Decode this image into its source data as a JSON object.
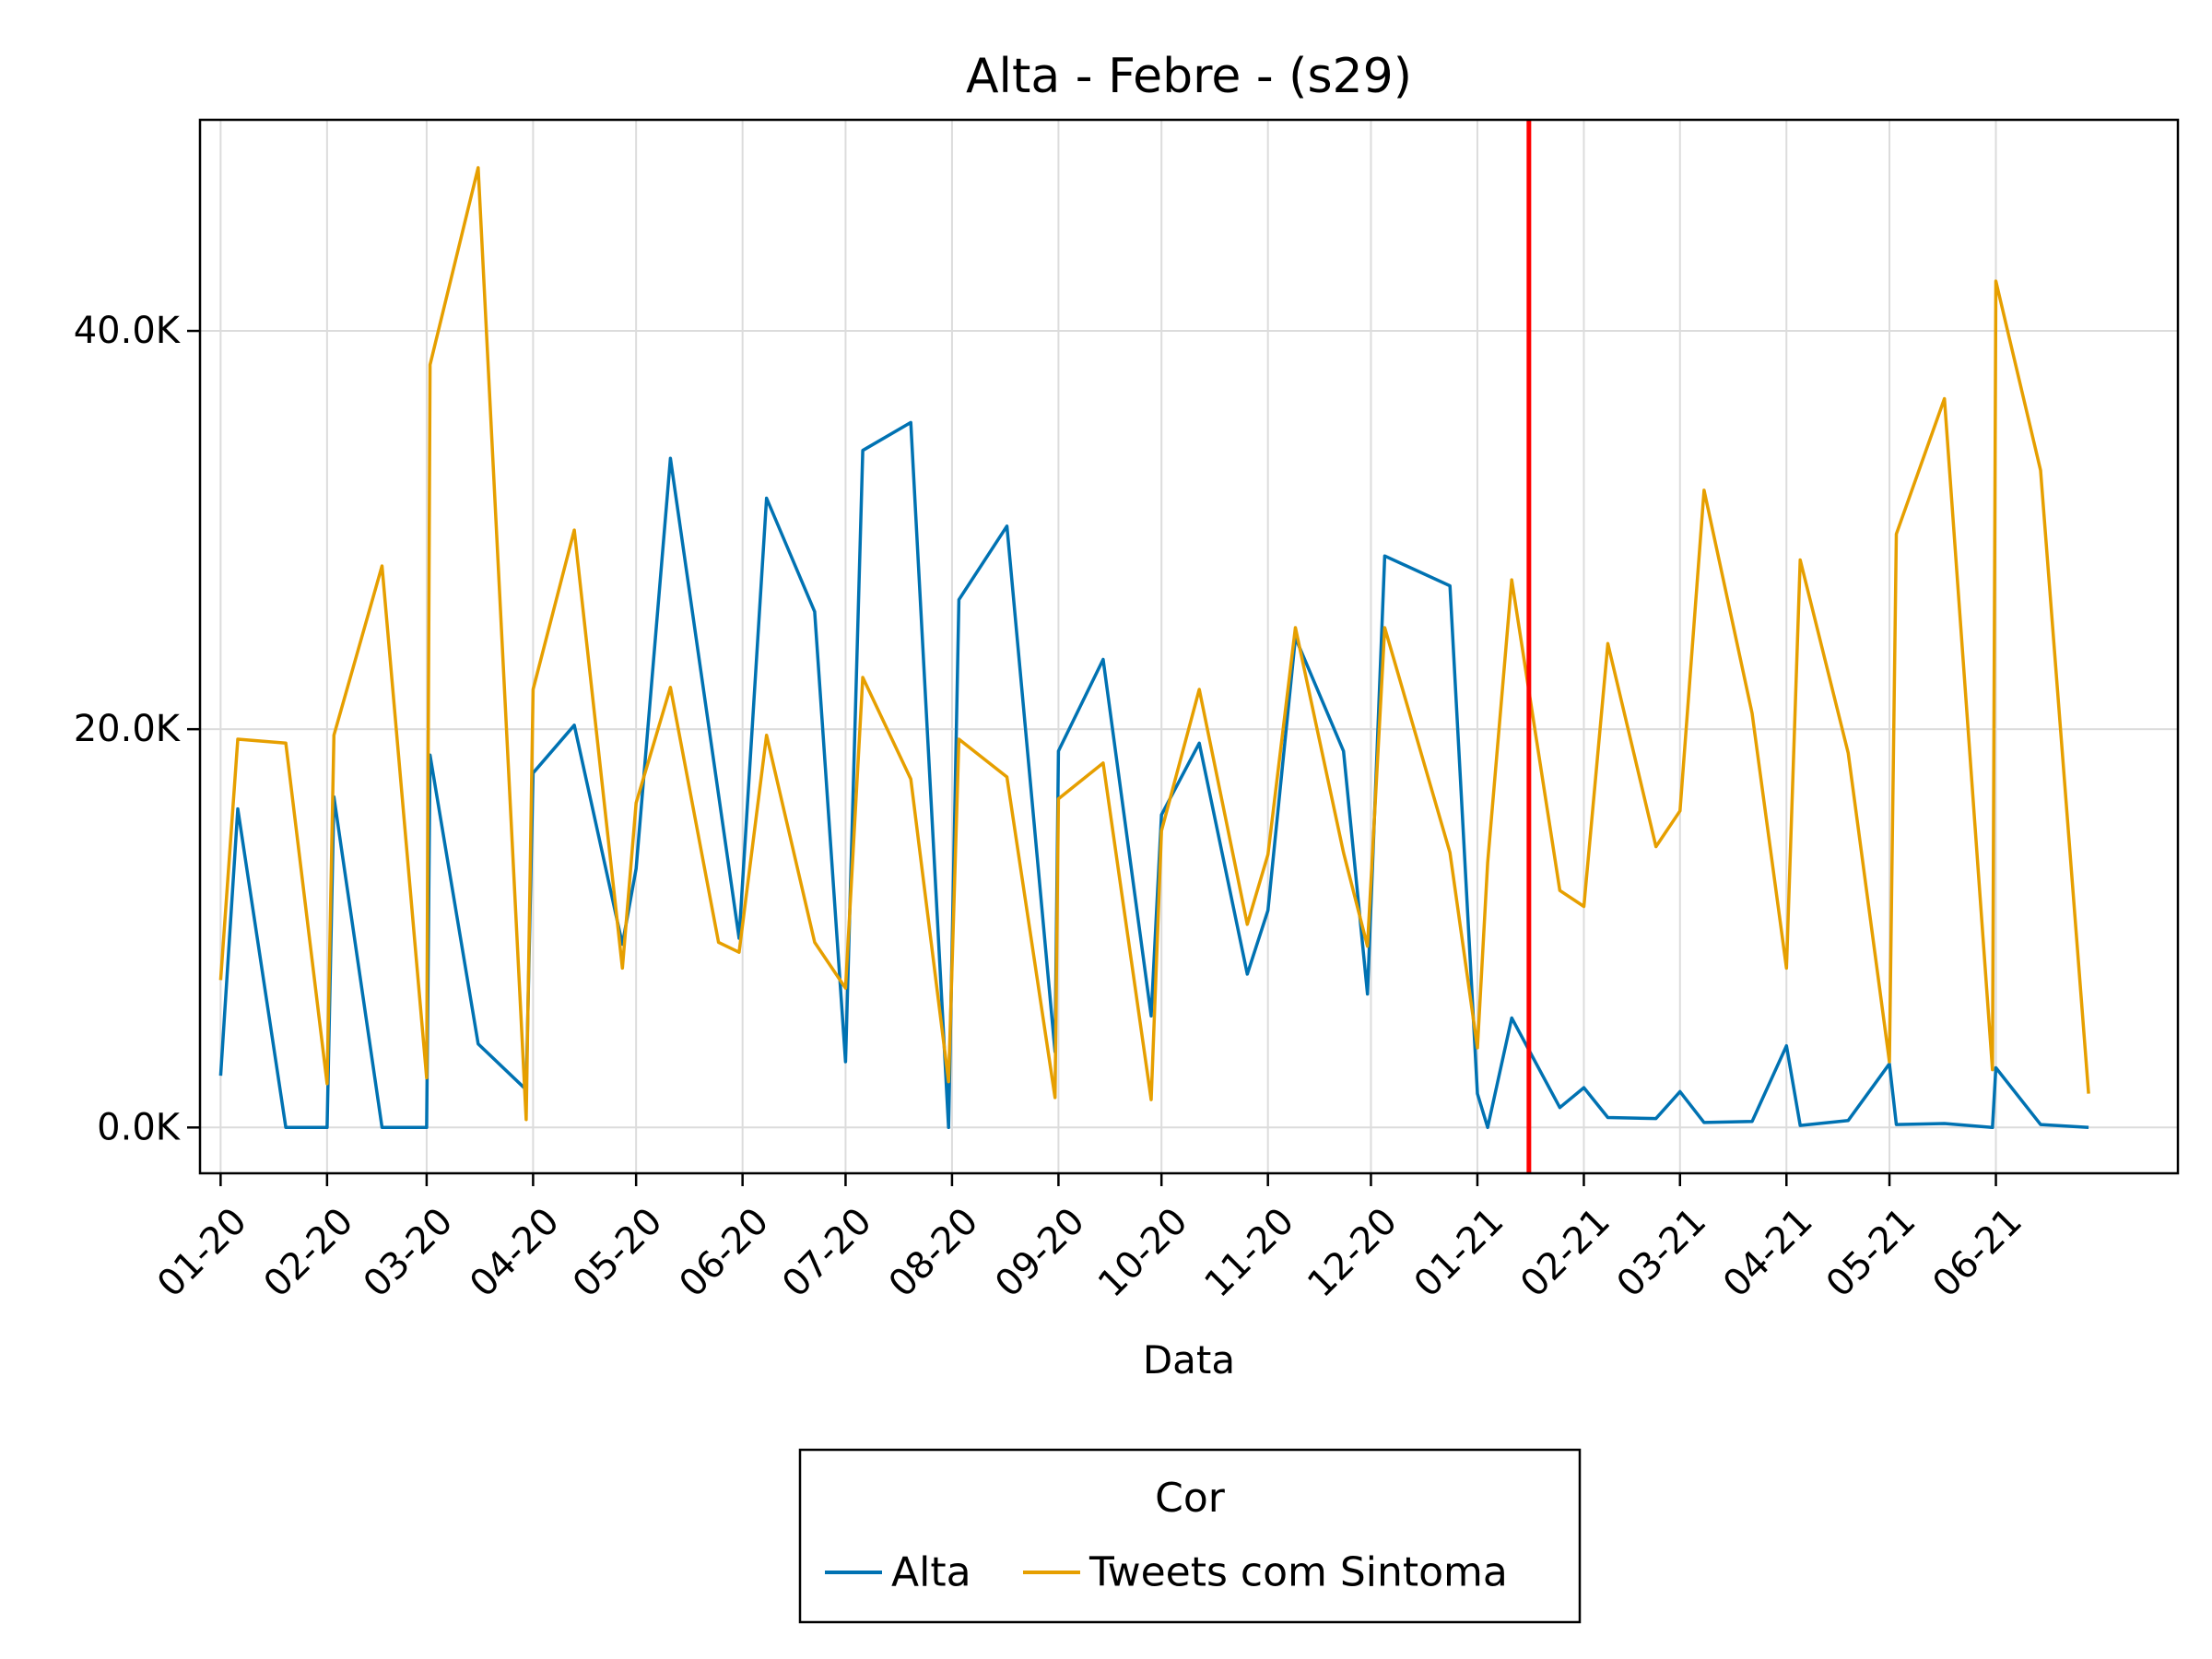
{
  "chart_data": {
    "type": "line",
    "title": "Alta - Febre - (s29)",
    "xlabel": "Data",
    "ylabel": "",
    "x_axis": {
      "scale": "date",
      "range": [
        "2019-12-26",
        "2021-07-24"
      ],
      "tick_dates": [
        "2020-01-01",
        "2020-02-01",
        "2020-03-01",
        "2020-04-01",
        "2020-05-01",
        "2020-06-01",
        "2020-07-01",
        "2020-08-01",
        "2020-09-01",
        "2020-10-01",
        "2020-11-01",
        "2020-12-01",
        "2021-01-01",
        "2021-02-01",
        "2021-03-01",
        "2021-04-01",
        "2021-05-01",
        "2021-06-01"
      ],
      "tick_labels": [
        "01-20",
        "02-20",
        "03-20",
        "04-20",
        "05-20",
        "06-20",
        "07-20",
        "08-20",
        "09-20",
        "10-20",
        "11-20",
        "12-20",
        "01-21",
        "02-21",
        "03-21",
        "04-21",
        "05-21",
        "06-21"
      ],
      "tick_rotation_deg": 45
    },
    "y_axis": {
      "range": [
        -2300,
        50600
      ],
      "ticks": [
        0,
        20000,
        40000
      ],
      "tick_labels": [
        "0.0K",
        "20.0K",
        "40.0K"
      ]
    },
    "grid": true,
    "vline": {
      "date": "2021-01-16",
      "color": "#ff0000"
    },
    "legend": {
      "title": "Cor",
      "placement": "bottom-center",
      "items": [
        {
          "label": "Alta",
          "color": "#0072b2"
        },
        {
          "label": "Tweets com Sintoma",
          "color": "#e69f00"
        }
      ]
    },
    "series": [
      {
        "name": "Alta",
        "color": "#0072b2",
        "points": [
          [
            "2020-01-01",
            2600
          ],
          [
            "2020-01-06",
            16000
          ],
          [
            "2020-01-20",
            0
          ],
          [
            "2020-02-01",
            0
          ],
          [
            "2020-02-03",
            16600
          ],
          [
            "2020-02-17",
            0
          ],
          [
            "2020-03-01",
            0
          ],
          [
            "2020-03-02",
            18700
          ],
          [
            "2020-03-16",
            4200
          ],
          [
            "2020-03-30",
            1900
          ],
          [
            "2020-04-01",
            17800
          ],
          [
            "2020-04-13",
            20200
          ],
          [
            "2020-04-27",
            9200
          ],
          [
            "2020-05-01",
            13000
          ],
          [
            "2020-05-11",
            33600
          ],
          [
            "2020-05-31",
            9500
          ],
          [
            "2020-06-08",
            31600
          ],
          [
            "2020-06-22",
            25900
          ],
          [
            "2020-07-01",
            3300
          ],
          [
            "2020-07-06",
            34000
          ],
          [
            "2020-07-20",
            35400
          ],
          [
            "2020-07-31",
            0
          ],
          [
            "2020-08-03",
            26500
          ],
          [
            "2020-08-17",
            30200
          ],
          [
            "2020-08-31",
            3800
          ],
          [
            "2020-09-01",
            18900
          ],
          [
            "2020-09-14",
            23500
          ],
          [
            "2020-09-28",
            5600
          ],
          [
            "2020-10-01",
            15700
          ],
          [
            "2020-10-12",
            19300
          ],
          [
            "2020-10-26",
            7700
          ],
          [
            "2020-11-01",
            10900
          ],
          [
            "2020-11-09",
            24600
          ],
          [
            "2020-11-23",
            18900
          ],
          [
            "2020-11-30",
            6700
          ],
          [
            "2020-12-05",
            28700
          ],
          [
            "2020-12-24",
            27200
          ],
          [
            "2021-01-01",
            1700
          ],
          [
            "2021-01-04",
            0
          ],
          [
            "2021-01-11",
            5500
          ],
          [
            "2021-01-25",
            1000
          ],
          [
            "2021-02-01",
            2000
          ],
          [
            "2021-02-08",
            500
          ],
          [
            "2021-02-22",
            450
          ],
          [
            "2021-03-01",
            1800
          ],
          [
            "2021-03-08",
            250
          ],
          [
            "2021-03-22",
            300
          ],
          [
            "2021-04-01",
            4100
          ],
          [
            "2021-04-05",
            100
          ],
          [
            "2021-04-19",
            350
          ],
          [
            "2021-05-01",
            3200
          ],
          [
            "2021-05-03",
            150
          ],
          [
            "2021-05-17",
            200
          ],
          [
            "2021-05-31",
            0
          ],
          [
            "2021-06-01",
            3000
          ],
          [
            "2021-06-14",
            150
          ],
          [
            "2021-06-28",
            0
          ]
        ]
      },
      {
        "name": "Tweets com Sintoma",
        "color": "#e69f00",
        "points": [
          [
            "2020-01-01",
            7400
          ],
          [
            "2020-01-06",
            19500
          ],
          [
            "2020-01-20",
            19300
          ],
          [
            "2020-02-01",
            2200
          ],
          [
            "2020-02-03",
            19700
          ],
          [
            "2020-02-17",
            28200
          ],
          [
            "2020-03-01",
            2500
          ],
          [
            "2020-03-02",
            38300
          ],
          [
            "2020-03-16",
            48200
          ],
          [
            "2020-03-30",
            400
          ],
          [
            "2020-04-01",
            22000
          ],
          [
            "2020-04-13",
            30000
          ],
          [
            "2020-04-27",
            8000
          ],
          [
            "2020-05-01",
            16300
          ],
          [
            "2020-05-11",
            22100
          ],
          [
            "2020-05-25",
            9300
          ],
          [
            "2020-05-31",
            8800
          ],
          [
            "2020-06-08",
            19700
          ],
          [
            "2020-06-22",
            9300
          ],
          [
            "2020-07-01",
            7000
          ],
          [
            "2020-07-06",
            22600
          ],
          [
            "2020-07-20",
            17500
          ],
          [
            "2020-07-31",
            2300
          ],
          [
            "2020-08-03",
            19500
          ],
          [
            "2020-08-17",
            17600
          ],
          [
            "2020-08-31",
            1500
          ],
          [
            "2020-09-01",
            16500
          ],
          [
            "2020-09-14",
            18300
          ],
          [
            "2020-09-28",
            1400
          ],
          [
            "2020-10-01",
            14900
          ],
          [
            "2020-10-12",
            22000
          ],
          [
            "2020-10-26",
            10200
          ],
          [
            "2020-11-01",
            13700
          ],
          [
            "2020-11-09",
            25100
          ],
          [
            "2020-11-23",
            13800
          ],
          [
            "2020-11-30",
            9100
          ],
          [
            "2020-12-05",
            25100
          ],
          [
            "2020-12-24",
            13800
          ],
          [
            "2021-01-01",
            4000
          ],
          [
            "2021-01-04",
            13300
          ],
          [
            "2021-01-11",
            27500
          ],
          [
            "2021-01-25",
            11900
          ],
          [
            "2021-02-01",
            11100
          ],
          [
            "2021-02-08",
            24300
          ],
          [
            "2021-02-22",
            14100
          ],
          [
            "2021-03-01",
            15900
          ],
          [
            "2021-03-08",
            32000
          ],
          [
            "2021-03-22",
            20800
          ],
          [
            "2021-04-01",
            8000
          ],
          [
            "2021-04-05",
            28500
          ],
          [
            "2021-04-19",
            18800
          ],
          [
            "2021-05-01",
            3300
          ],
          [
            "2021-05-03",
            29800
          ],
          [
            "2021-05-17",
            36600
          ],
          [
            "2021-05-31",
            2900
          ],
          [
            "2021-06-01",
            42500
          ],
          [
            "2021-06-14",
            33000
          ],
          [
            "2021-06-28",
            1700
          ]
        ]
      }
    ]
  }
}
